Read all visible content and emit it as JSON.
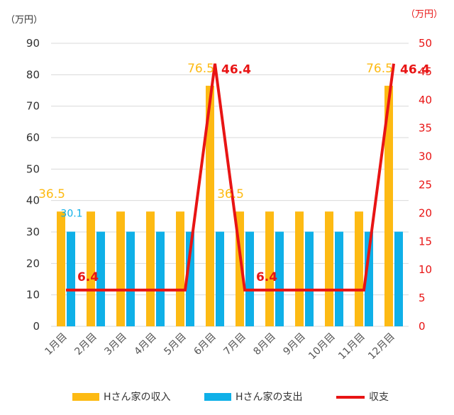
{
  "chart_data": {
    "type": "bar",
    "categories": [
      "1月目",
      "2月目",
      "3月目",
      "4月目",
      "5月目",
      "6月目",
      "7月目",
      "8月目",
      "9月目",
      "10月目",
      "11月目",
      "12月目"
    ],
    "series": [
      {
        "name": "Hさん家の収入",
        "kind": "bar",
        "axis": "left",
        "color": "#FDBA13",
        "values": [
          36.5,
          36.5,
          36.5,
          36.5,
          36.5,
          76.5,
          36.5,
          36.5,
          36.5,
          36.5,
          36.5,
          76.5
        ]
      },
      {
        "name": "Hさん家の支出",
        "kind": "bar",
        "axis": "left",
        "color": "#0FB0E8",
        "values": [
          30.1,
          30.1,
          30.1,
          30.1,
          30.1,
          30.1,
          30.1,
          30.1,
          30.1,
          30.1,
          30.1,
          30.1
        ]
      },
      {
        "name": "収支",
        "kind": "line",
        "axis": "right",
        "color": "#E81414",
        "values": [
          6.4,
          6.4,
          6.4,
          6.4,
          6.4,
          46.4,
          6.4,
          6.4,
          6.4,
          6.4,
          6.4,
          46.4
        ]
      }
    ],
    "left_axis": {
      "unit": "（万円）",
      "ylim": [
        0,
        90
      ],
      "ticks": [
        "0",
        "10",
        "20",
        "30",
        "40",
        "50",
        "60",
        "70",
        "80",
        "90"
      ]
    },
    "right_axis": {
      "unit": "（万円）",
      "ylim": [
        0,
        50
      ],
      "ticks": [
        "0",
        "5",
        "10",
        "15",
        "20",
        "25",
        "30",
        "35",
        "40",
        "45",
        "50"
      ],
      "color": "#E81414"
    },
    "data_labels": [
      {
        "series": 0,
        "index": 0,
        "text": "36.5"
      },
      {
        "series": 0,
        "index": 5,
        "text": "76.5"
      },
      {
        "series": 0,
        "index": 6,
        "text": "36.5"
      },
      {
        "series": 0,
        "index": 11,
        "text": "76.5"
      },
      {
        "series": 1,
        "index": 0,
        "text": "30.1"
      },
      {
        "series": 2,
        "index": 0,
        "text": "6.4"
      },
      {
        "series": 2,
        "index": 5,
        "text": "46.4"
      },
      {
        "series": 2,
        "index": 6,
        "text": "6.4"
      },
      {
        "series": 2,
        "index": 11,
        "text": "46.4"
      }
    ],
    "grid": true,
    "legend_position": "bottom"
  }
}
